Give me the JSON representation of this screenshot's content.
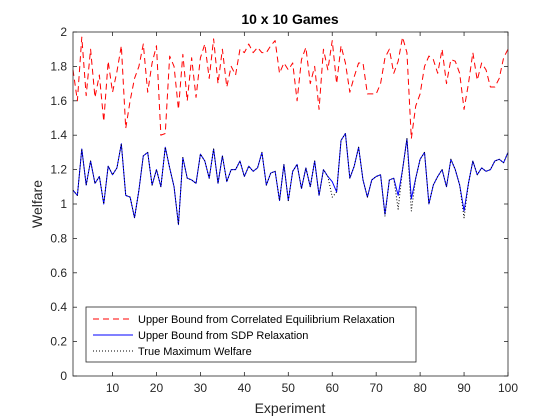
{
  "chart_data": {
    "type": "line",
    "title": "10 x 10 Games",
    "xlabel": "Experiment",
    "ylabel": "Welfare",
    "xlim": [
      1,
      100
    ],
    "ylim": [
      0,
      2
    ],
    "xticks": [
      10,
      20,
      30,
      40,
      50,
      60,
      70,
      80,
      90,
      100
    ],
    "yticks": [
      0,
      0.2,
      0.4,
      0.6,
      0.8,
      1,
      1.2,
      1.4,
      1.6,
      1.8,
      2
    ],
    "ytick_labels": [
      "0",
      "0.2",
      "0.4",
      "0.6",
      "0.8",
      "1",
      "1.2",
      "1.4",
      "1.6",
      "1.8",
      "2"
    ],
    "grid": false,
    "legend_position": "bottom-left",
    "series": [
      {
        "name": "Upper Bound from Correlated Equilibrium Relaxation",
        "color": "#ff0000",
        "style": "dashed",
        "values": [
          1.78,
          1.6,
          1.97,
          1.63,
          1.9,
          1.62,
          1.75,
          1.48,
          1.83,
          1.65,
          1.77,
          1.92,
          1.44,
          1.6,
          1.73,
          1.8,
          1.93,
          1.65,
          1.82,
          1.92,
          1.4,
          1.41,
          1.86,
          1.8,
          1.55,
          1.87,
          1.6,
          1.85,
          1.62,
          1.85,
          1.93,
          1.73,
          1.96,
          1.7,
          1.9,
          1.68,
          1.8,
          1.75,
          1.9,
          1.88,
          1.93,
          1.88,
          1.91,
          1.88,
          1.88,
          1.92,
          1.95,
          1.76,
          1.82,
          1.78,
          1.82,
          1.6,
          1.84,
          1.91,
          1.7,
          1.8,
          1.55,
          1.9,
          1.78,
          1.95,
          1.7,
          1.92,
          1.82,
          1.65,
          1.74,
          1.82,
          1.82,
          1.64,
          1.64,
          1.64,
          1.7,
          1.85,
          1.9,
          1.76,
          1.83,
          1.97,
          1.88,
          1.38,
          1.57,
          1.64,
          1.8,
          1.86,
          1.84,
          1.76,
          1.9,
          1.7,
          1.84,
          1.83,
          1.76,
          1.55,
          1.7,
          1.88,
          1.72,
          1.82,
          1.78,
          1.68,
          1.68,
          1.73,
          1.85,
          1.9
        ]
      },
      {
        "name": "Upper Bound from SDP Relaxation",
        "color": "#0000ff",
        "style": "solid",
        "values": [
          1.08,
          1.05,
          1.32,
          1.11,
          1.25,
          1.12,
          1.16,
          1.0,
          1.22,
          1.17,
          1.21,
          1.35,
          1.05,
          1.04,
          0.92,
          1.08,
          1.28,
          1.3,
          1.11,
          1.2,
          1.1,
          1.33,
          1.21,
          1.1,
          0.88,
          1.27,
          1.15,
          1.14,
          1.12,
          1.29,
          1.25,
          1.15,
          1.32,
          1.12,
          1.28,
          1.13,
          1.2,
          1.2,
          1.25,
          1.16,
          1.22,
          1.19,
          1.21,
          1.3,
          1.11,
          1.18,
          1.19,
          1.02,
          1.23,
          1.02,
          1.19,
          1.23,
          1.09,
          1.21,
          1.1,
          1.25,
          1.05,
          1.2,
          1.16,
          1.13,
          1.07,
          1.37,
          1.41,
          1.15,
          1.22,
          1.33,
          1.14,
          1.04,
          1.14,
          1.16,
          1.17,
          0.94,
          1.14,
          1.15,
          1.05,
          1.2,
          1.38,
          1.03,
          1.15,
          1.26,
          1.3,
          1.0,
          1.11,
          1.16,
          1.2,
          1.1,
          1.26,
          1.2,
          1.11,
          0.96,
          1.12,
          1.25,
          1.17,
          1.21,
          1.19,
          1.2,
          1.25,
          1.26,
          1.24,
          1.3
        ]
      },
      {
        "name": "True Maximum Welfare",
        "color": "#000000",
        "style": "dotted",
        "values": [
          1.08,
          1.05,
          1.32,
          1.11,
          1.25,
          1.12,
          1.16,
          1.0,
          1.22,
          1.17,
          1.21,
          1.35,
          1.05,
          1.04,
          0.92,
          1.08,
          1.28,
          1.3,
          1.11,
          1.2,
          1.1,
          1.33,
          1.21,
          1.1,
          0.88,
          1.27,
          1.15,
          1.14,
          1.12,
          1.29,
          1.25,
          1.15,
          1.32,
          1.12,
          1.28,
          1.13,
          1.2,
          1.2,
          1.25,
          1.16,
          1.22,
          1.19,
          1.21,
          1.3,
          1.11,
          1.18,
          1.19,
          1.02,
          1.23,
          1.02,
          1.19,
          1.23,
          1.09,
          1.21,
          1.1,
          1.25,
          1.05,
          1.2,
          1.16,
          1.04,
          1.07,
          1.37,
          1.41,
          1.15,
          1.22,
          1.33,
          1.14,
          1.04,
          1.14,
          1.16,
          1.17,
          0.93,
          1.14,
          1.15,
          0.97,
          1.2,
          1.38,
          0.96,
          1.15,
          1.26,
          1.3,
          1.0,
          1.11,
          1.16,
          1.2,
          1.1,
          1.26,
          1.2,
          1.11,
          0.92,
          1.12,
          1.25,
          1.17,
          1.21,
          1.19,
          1.2,
          1.25,
          1.26,
          1.24,
          1.3
        ]
      }
    ]
  }
}
